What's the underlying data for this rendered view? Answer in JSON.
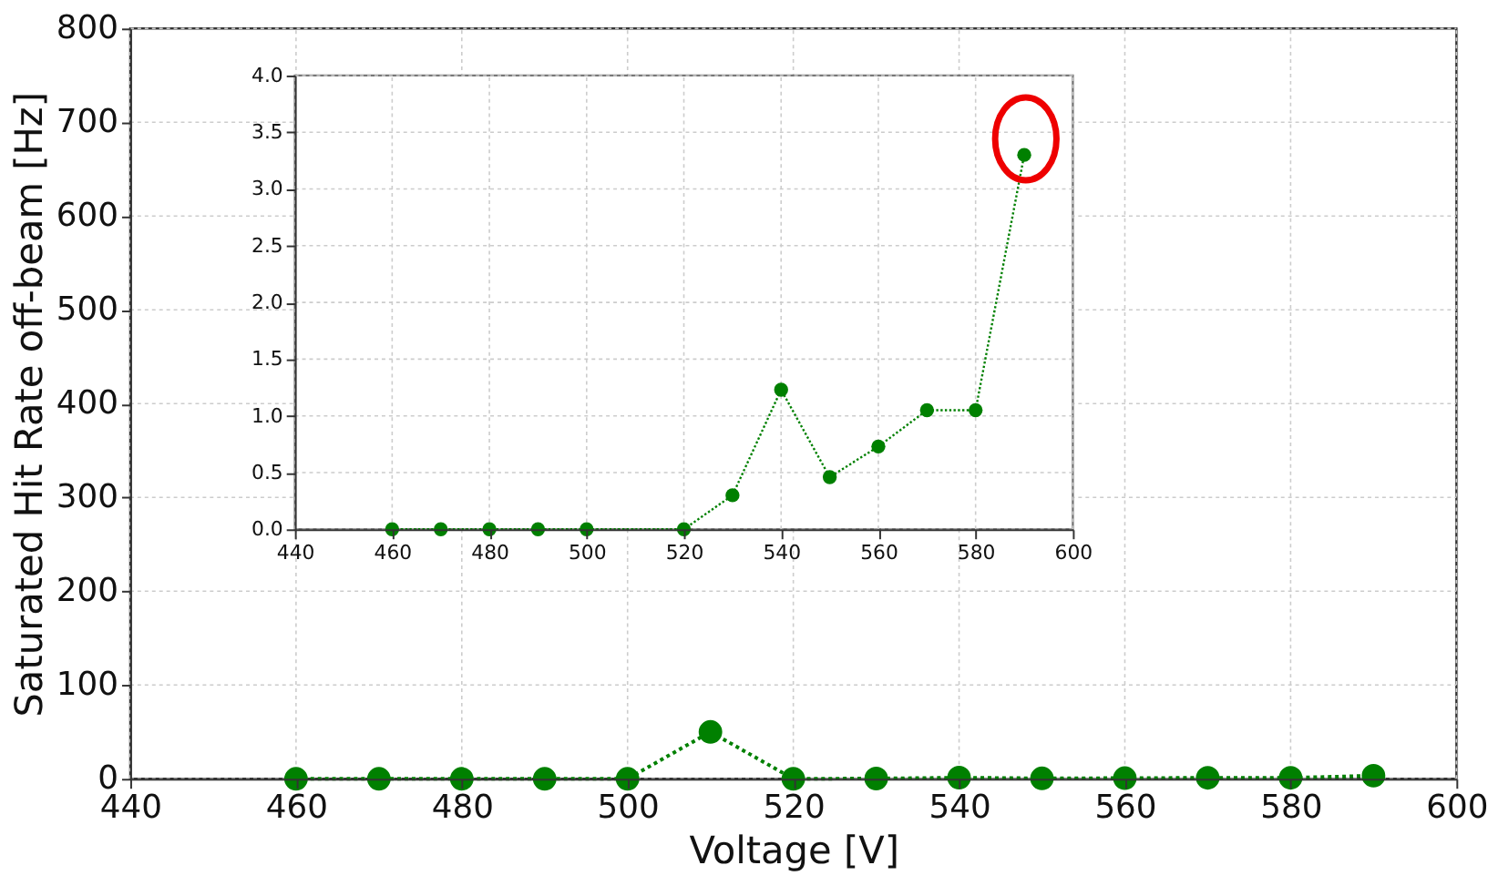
{
  "chart_data": [
    {
      "type": "line",
      "xlabel": "Voltage [V]",
      "ylabel": "Saturated Hit Rate off-beam [Hz]",
      "x": [
        460,
        470,
        480,
        490,
        500,
        510,
        520,
        530,
        540,
        550,
        560,
        570,
        580,
        590
      ],
      "series": [
        {
          "color": "#008000",
          "values": [
            0,
            0,
            0,
            0,
            0,
            50,
            0,
            0.3,
            1.23,
            0.46,
            0.73,
            1.05,
            1.05,
            3.3
          ]
        }
      ],
      "xlim": [
        440,
        600
      ],
      "ylim": [
        0,
        800
      ],
      "xticks": [
        440,
        460,
        480,
        500,
        520,
        540,
        560,
        580,
        600
      ],
      "yticks": [
        0,
        100,
        200,
        300,
        400,
        500,
        600,
        700,
        800
      ],
      "grid": true,
      "marker": "circle",
      "line_style": "dotted"
    },
    {
      "type": "line",
      "x": [
        460,
        470,
        480,
        490,
        500,
        520,
        530,
        540,
        550,
        560,
        570,
        580,
        590
      ],
      "series": [
        {
          "color": "#008000",
          "values": [
            0,
            0,
            0,
            0,
            0,
            0,
            0.3,
            1.23,
            0.46,
            0.73,
            1.05,
            1.05,
            3.3
          ]
        }
      ],
      "xlim": [
        440,
        600
      ],
      "ylim": [
        0,
        4
      ],
      "xticks": [
        440,
        460,
        480,
        500,
        520,
        540,
        560,
        580,
        600
      ],
      "yticks": [
        {
          "value": 0,
          "label": "0.0"
        },
        {
          "value": 0.5,
          "label": "0.5"
        },
        {
          "value": 1,
          "label": "1.0"
        },
        {
          "value": 1.5,
          "label": "1.5"
        },
        {
          "value": 2,
          "label": "2.0"
        },
        {
          "value": 2.5,
          "label": "2.5"
        },
        {
          "value": 3,
          "label": "3.0"
        },
        {
          "value": 3.5,
          "label": "3.5"
        },
        {
          "value": 4,
          "label": "4.0"
        }
      ],
      "grid": true,
      "marker": "circle",
      "line_style": "dotted"
    }
  ]
}
